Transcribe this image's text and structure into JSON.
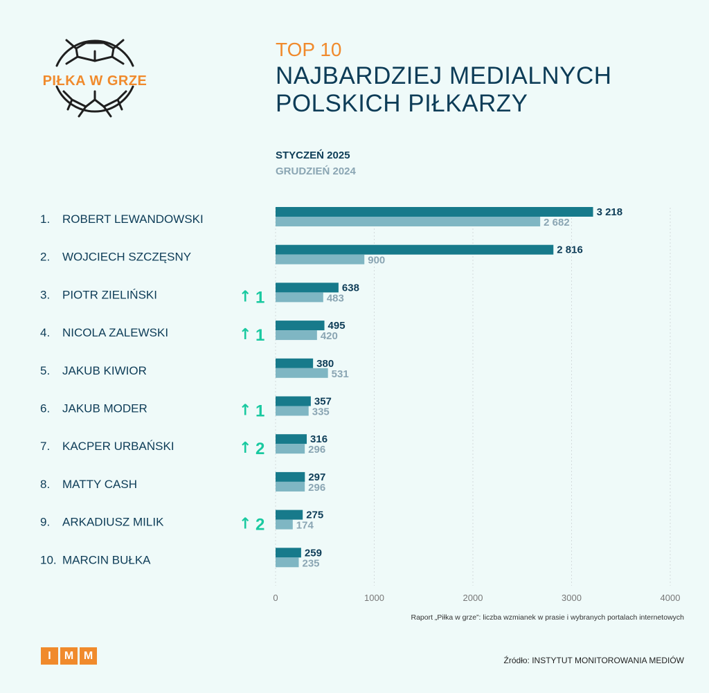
{
  "logo": {
    "text": "PIŁKA W GRZE",
    "icon": "soccer-ball-icon"
  },
  "header": {
    "top": "TOP 10",
    "line1": "NAJBARDZIEJ MEDIALNYCH",
    "line2": "POLSKICH PIŁKARZY"
  },
  "colors": {
    "accent": "#f08a2c",
    "navy": "#0d3c57",
    "current": "#177a8b",
    "previous": "#7fb6c3",
    "up": "#19c9a0"
  },
  "chart_data": {
    "type": "bar",
    "orientation": "horizontal",
    "categories": [
      "ROBERT LEWANDOWSKI",
      "WOJCIECH SZCZĘSNY",
      "PIOTR ZIELIŃSKI",
      "NICOLA ZALEWSKI",
      "JAKUB KIWIOR",
      "JAKUB MODER",
      "KACPER URBAŃSKI",
      "MATTY CASH",
      "ARKADIUSZ MILIK",
      "MARCIN BUŁKA"
    ],
    "ranks": [
      "1.",
      "2.",
      "3.",
      "4.",
      "5.",
      "6.",
      "7.",
      "8.",
      "9.",
      "10."
    ],
    "rank_change": [
      "",
      "",
      "1",
      "1",
      "",
      "1",
      "2",
      "",
      "2",
      ""
    ],
    "series": [
      {
        "name": "STYCZEŃ 2025",
        "values": [
          3218,
          2816,
          638,
          495,
          380,
          357,
          316,
          297,
          275,
          259
        ],
        "labels": [
          "3 218",
          "2 816",
          "638",
          "495",
          "380",
          "357",
          "316",
          "297",
          "275",
          "259"
        ]
      },
      {
        "name": "GRUDZIEŃ 2024",
        "values": [
          2682,
          900,
          483,
          420,
          531,
          335,
          296,
          296,
          174,
          235
        ],
        "labels": [
          "2 682",
          "900",
          "483",
          "420",
          "531",
          "335",
          "296",
          "296",
          "174",
          "235"
        ]
      }
    ],
    "xlim": [
      0,
      4000
    ],
    "xticks": [
      0,
      1000,
      2000,
      3000,
      4000
    ],
    "grid": true,
    "legend_position": "top-left"
  },
  "footnote": "Raport „Piłka w grze”: liczba wzmianek w prasie i wybranych portalach internetowych",
  "brand": {
    "letters": [
      "I",
      "M",
      "M"
    ]
  },
  "source": "Źródło: INSTYTUT MONITOROWANIA MEDIÓW"
}
